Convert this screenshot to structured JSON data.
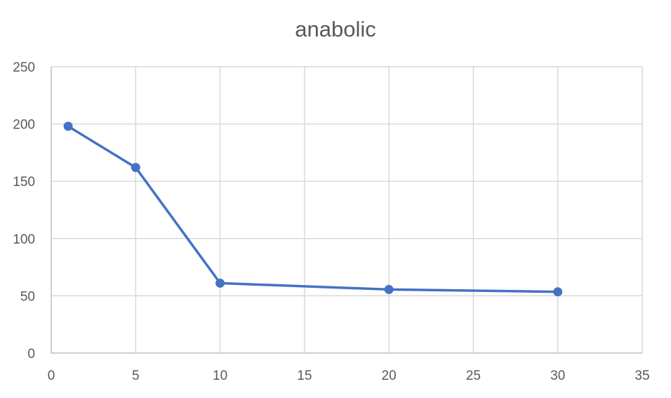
{
  "chart_data": {
    "type": "scatter",
    "title": "anabolic",
    "xlabel": "",
    "ylabel": "",
    "xlim": [
      0,
      35
    ],
    "ylim": [
      0,
      250
    ],
    "x_ticks": [
      0,
      5,
      10,
      15,
      20,
      25,
      30,
      35
    ],
    "y_ticks": [
      0,
      50,
      100,
      150,
      200,
      250
    ],
    "grid": true,
    "legend": "none",
    "markers": true,
    "lines": true,
    "series": [
      {
        "color": "#4472C4",
        "x": [
          1,
          5,
          10,
          20,
          30
        ],
        "y": [
          198,
          162,
          61,
          55.5,
          53.5
        ]
      }
    ]
  }
}
